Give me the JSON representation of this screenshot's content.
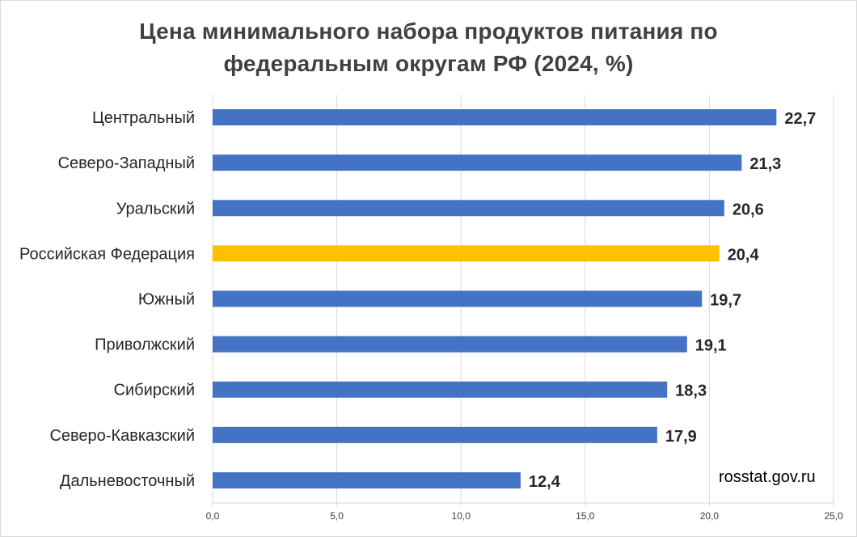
{
  "chart_data": {
    "type": "bar",
    "orientation": "horizontal",
    "title_line1": "Цена минимального набора продуктов питания по",
    "title_line2": "федеральным округам РФ (2024, %)",
    "categories": [
      "Центральный",
      "Северо-Западный",
      "Уральский",
      "Российская Федерация",
      "Южный",
      "Приволжский",
      "Сибирский",
      "Северо-Кавказский",
      "Дальневосточный"
    ],
    "values": [
      22.7,
      21.3,
      20.6,
      20.4,
      19.7,
      19.1,
      18.3,
      17.9,
      12.4
    ],
    "value_labels": [
      "22,7",
      "21,3",
      "20,6",
      "20,4",
      "19,7",
      "19,1",
      "18,3",
      "17,9",
      "12,4"
    ],
    "highlight_category": "Российская Федерация",
    "colors": {
      "bar": "#4472C4",
      "highlight": "#FFC000",
      "grid": "#d9d9d9"
    },
    "xlim": [
      0,
      25
    ],
    "ticks": [
      0,
      5,
      10,
      15,
      20,
      25
    ],
    "tick_labels": [
      "0,0",
      "5,0",
      "10,0",
      "15,0",
      "20,0",
      "25,0"
    ],
    "grid": true,
    "legend": "none"
  },
  "source": "rosstat.gov.ru"
}
